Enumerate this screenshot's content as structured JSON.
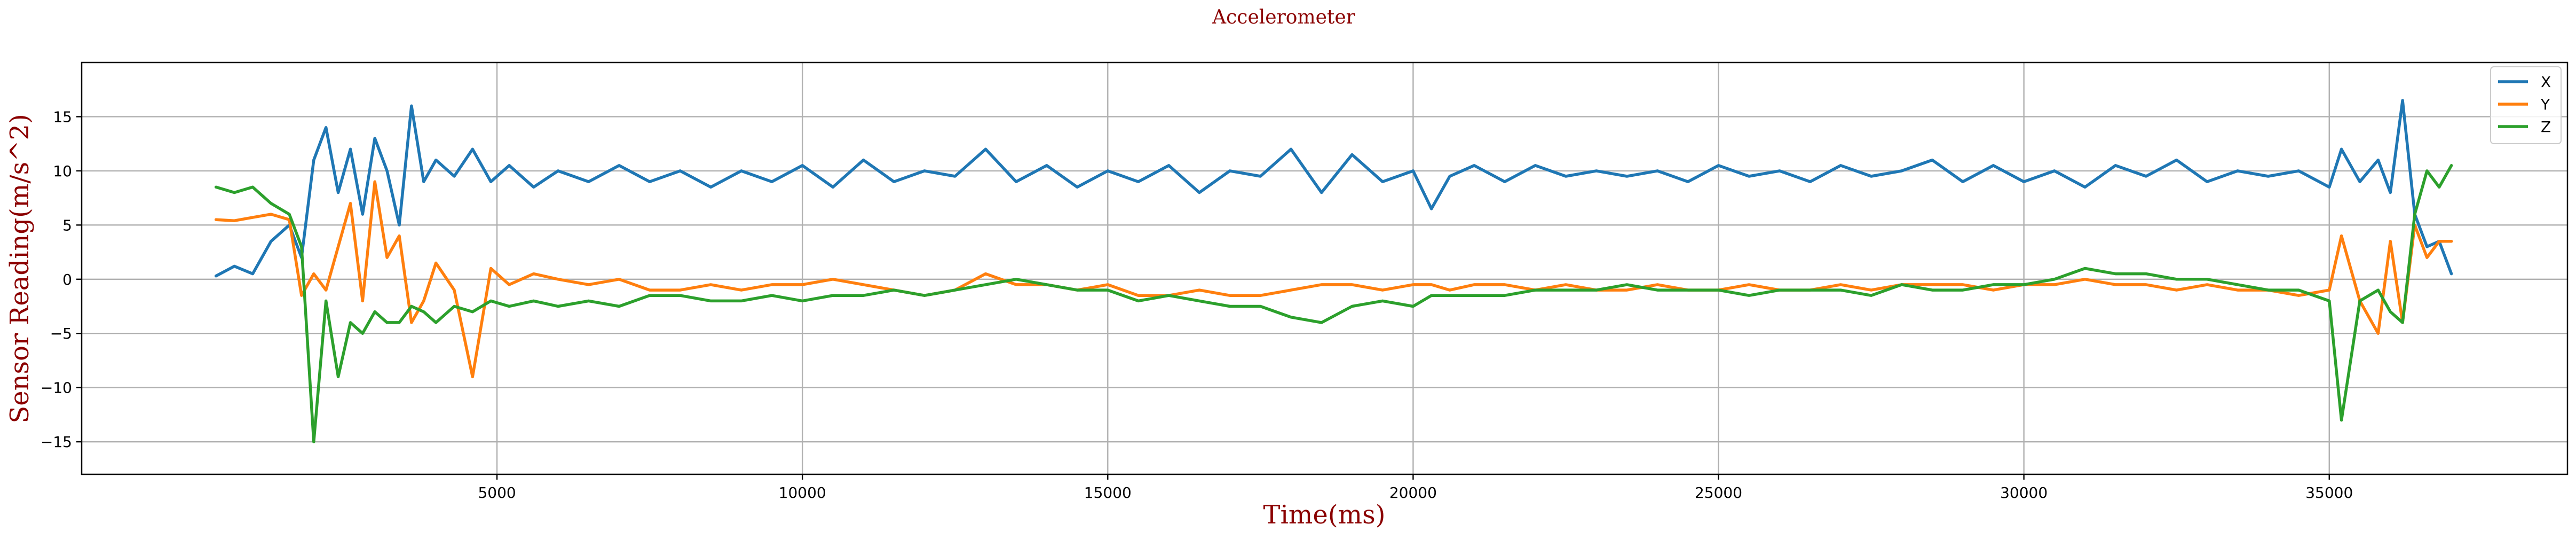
{
  "chart_data": {
    "type": "line",
    "title": "Accelerometer",
    "xlabel": "Time(ms)",
    "ylabel": "Sensor Reading(m/s^2)",
    "xlim": [
      -1800,
      38900
    ],
    "ylim": [
      -18,
      20
    ],
    "xticks": [
      5000,
      10000,
      15000,
      20000,
      25000,
      30000,
      35000
    ],
    "yticks": [
      -15,
      -10,
      -5,
      0,
      5,
      10,
      15
    ],
    "grid": true,
    "legend_position": "top-right",
    "x": [
      400,
      700,
      1000,
      1300,
      1600,
      1800,
      2000,
      2200,
      2400,
      2600,
      2800,
      3000,
      3200,
      3400,
      3600,
      3800,
      4000,
      4300,
      4600,
      4900,
      5200,
      5600,
      6000,
      6500,
      7000,
      7500,
      8000,
      8500,
      9000,
      9500,
      10000,
      10500,
      11000,
      11500,
      12000,
      12500,
      13000,
      13500,
      14000,
      14500,
      15000,
      15500,
      16000,
      16500,
      17000,
      17500,
      18000,
      18500,
      19000,
      19500,
      20000,
      20300,
      20600,
      21000,
      21500,
      22000,
      22500,
      23000,
      23500,
      24000,
      24500,
      25000,
      25500,
      26000,
      26500,
      27000,
      27500,
      28000,
      28500,
      29000,
      29500,
      30000,
      30500,
      31000,
      31500,
      32000,
      32500,
      33000,
      33500,
      34000,
      34500,
      35000,
      35200,
      35500,
      35800,
      36000,
      36200,
      36400,
      36600,
      36800,
      37000
    ],
    "series": [
      {
        "name": "X",
        "color": "#1f77b4",
        "values": [
          0.3,
          1.2,
          0.5,
          3.5,
          5.0,
          2.0,
          11.0,
          14.0,
          8.0,
          12.0,
          6.0,
          13.0,
          10.0,
          5.0,
          16.0,
          9.0,
          11.0,
          9.5,
          12.0,
          9.0,
          10.5,
          8.5,
          10.0,
          9.0,
          10.5,
          9.0,
          10.0,
          8.5,
          10.0,
          9.0,
          10.5,
          8.5,
          11.0,
          9.0,
          10.0,
          9.5,
          12.0,
          9.0,
          10.5,
          8.5,
          10.0,
          9.0,
          10.5,
          8.0,
          10.0,
          9.5,
          12.0,
          8.0,
          11.5,
          9.0,
          10.0,
          6.5,
          9.5,
          10.5,
          9.0,
          10.5,
          9.5,
          10.0,
          9.5,
          10.0,
          9.0,
          10.5,
          9.5,
          10.0,
          9.0,
          10.5,
          9.5,
          10.0,
          11.0,
          9.0,
          10.5,
          9.0,
          10.0,
          8.5,
          10.5,
          9.5,
          11.0,
          9.0,
          10.0,
          9.5,
          10.0,
          8.5,
          12.0,
          9.0,
          11.0,
          8.0,
          16.5,
          6.0,
          3.0,
          3.5,
          0.5
        ]
      },
      {
        "name": "Y",
        "color": "#ff7f0e",
        "values": [
          5.5,
          5.4,
          5.7,
          6.0,
          5.5,
          -1.5,
          0.5,
          -1.0,
          3.0,
          7.0,
          -2.0,
          9.0,
          2.0,
          4.0,
          -4.0,
          -2.0,
          1.5,
          -1.0,
          -9.0,
          1.0,
          -0.5,
          0.5,
          0.0,
          -0.5,
          0.0,
          -1.0,
          -1.0,
          -0.5,
          -1.0,
          -0.5,
          -0.5,
          0.0,
          -0.5,
          -1.0,
          -1.5,
          -1.0,
          0.5,
          -0.5,
          -0.5,
          -1.0,
          -0.5,
          -1.5,
          -1.5,
          -1.0,
          -1.5,
          -1.5,
          -1.0,
          -0.5,
          -0.5,
          -1.0,
          -0.5,
          -0.5,
          -1.0,
          -0.5,
          -0.5,
          -1.0,
          -0.5,
          -1.0,
          -1.0,
          -0.5,
          -1.0,
          -1.0,
          -0.5,
          -1.0,
          -1.0,
          -0.5,
          -1.0,
          -0.5,
          -0.5,
          -0.5,
          -1.0,
          -0.5,
          -0.5,
          0.0,
          -0.5,
          -0.5,
          -1.0,
          -0.5,
          -1.0,
          -1.0,
          -1.5,
          -1.0,
          4.0,
          -2.0,
          -5.0,
          3.5,
          -4.0,
          5.0,
          2.0,
          3.5,
          3.5
        ]
      },
      {
        "name": "Z",
        "color": "#2ca02c",
        "values": [
          8.5,
          8.0,
          8.5,
          7.0,
          6.0,
          3.0,
          -15.0,
          -2.0,
          -9.0,
          -4.0,
          -5.0,
          -3.0,
          -4.0,
          -4.0,
          -2.5,
          -3.0,
          -4.0,
          -2.5,
          -3.0,
          -2.0,
          -2.5,
          -2.0,
          -2.5,
          -2.0,
          -2.5,
          -1.5,
          -1.5,
          -2.0,
          -2.0,
          -1.5,
          -2.0,
          -1.5,
          -1.5,
          -1.0,
          -1.5,
          -1.0,
          -0.5,
          0.0,
          -0.5,
          -1.0,
          -1.0,
          -2.0,
          -1.5,
          -2.0,
          -2.5,
          -2.5,
          -3.5,
          -4.0,
          -2.5,
          -2.0,
          -2.5,
          -1.5,
          -1.5,
          -1.5,
          -1.5,
          -1.0,
          -1.0,
          -1.0,
          -0.5,
          -1.0,
          -1.0,
          -1.0,
          -1.5,
          -1.0,
          -1.0,
          -1.0,
          -1.5,
          -0.5,
          -1.0,
          -1.0,
          -0.5,
          -0.5,
          0.0,
          1.0,
          0.5,
          0.5,
          0.0,
          0.0,
          -0.5,
          -1.0,
          -1.0,
          -2.0,
          -13.0,
          -2.0,
          -1.0,
          -3.0,
          -4.0,
          6.0,
          10.0,
          8.5,
          10.5
        ]
      }
    ]
  }
}
